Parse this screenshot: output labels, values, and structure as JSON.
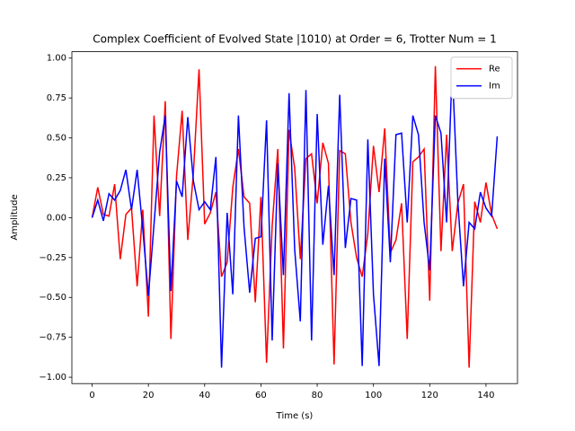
{
  "chart_data": {
    "type": "line",
    "title": "Complex Coefficient of Evolved State |1010⟩ at Order = 6, Trotter Num = 1",
    "x_label": "Time (s)",
    "y_label": "Amplitude",
    "x": [
      0,
      2,
      4,
      6,
      8,
      10,
      12,
      14,
      16,
      18,
      20,
      22,
      24,
      26,
      28,
      30,
      32,
      34,
      36,
      38,
      40,
      42,
      44,
      46,
      48,
      50,
      52,
      54,
      56,
      58,
      60,
      62,
      64,
      66,
      68,
      70,
      72,
      74,
      76,
      78,
      80,
      82,
      84,
      86,
      88,
      90,
      92,
      94,
      96,
      98,
      100,
      102,
      104,
      106,
      108,
      110,
      112,
      114,
      116,
      118,
      120,
      122,
      124,
      126,
      128,
      130,
      132,
      134,
      136,
      138,
      140,
      142,
      144
    ],
    "series": [
      {
        "name": "Re",
        "color": "#ff0000",
        "values": [
          0,
          0.19,
          0.02,
          0.01,
          0.21,
          -0.26,
          0.02,
          0.06,
          -0.43,
          0.05,
          -0.62,
          0.64,
          0.01,
          0.73,
          -0.76,
          0.26,
          0.67,
          -0.14,
          0.28,
          0.93,
          -0.04,
          0.03,
          0.16,
          -0.37,
          -0.28,
          0.19,
          0.43,
          0.13,
          0.09,
          -0.53,
          0.13,
          -0.91,
          -0.05,
          0.43,
          -0.82,
          0.55,
          0.31,
          -0.26,
          0.37,
          0.4,
          0.09,
          0.47,
          0.34,
          -0.92,
          0.42,
          0.4,
          -0.03,
          -0.25,
          -0.37,
          -0.1,
          0.45,
          0.16,
          0.56,
          -0.22,
          -0.14,
          0.09,
          -0.76,
          0.35,
          0.38,
          0.43,
          -0.52,
          0.95,
          -0.21,
          0.52,
          -0.21,
          0.09,
          0.21,
          -0.94,
          0.1,
          -0.03,
          0.22,
          0.02,
          -0.07
        ]
      },
      {
        "name": "Im",
        "color": "#0000ff",
        "values": [
          0,
          0.11,
          -0.02,
          0.15,
          0.11,
          0.17,
          0.3,
          0.05,
          0.3,
          -0.07,
          -0.49,
          -0.04,
          0.41,
          0.64,
          -0.46,
          0.23,
          0.13,
          0.63,
          0.23,
          0.05,
          0.1,
          0.05,
          0.38,
          -0.94,
          0.03,
          -0.48,
          0.64,
          -0.06,
          -0.47,
          -0.13,
          -0.12,
          0.61,
          -0.77,
          0.34,
          -0.36,
          0.78,
          -0.2,
          -0.65,
          0.8,
          -0.77,
          0.65,
          -0.17,
          0.2,
          -0.36,
          0.77,
          -0.19,
          0.12,
          0.11,
          -0.93,
          0.49,
          -0.48,
          -0.93,
          0.37,
          -0.28,
          0.52,
          0.53,
          -0.03,
          0.64,
          0.52,
          -0.03,
          -0.33,
          0.64,
          0.53,
          -0.03,
          0.94,
          0.1,
          -0.43,
          -0.03,
          -0.07,
          0.16,
          0.06,
          0.01,
          0.51
        ]
      }
    ],
    "xlim": [
      -7.2,
      151.2
    ],
    "xticks": [
      0,
      20,
      40,
      60,
      80,
      100,
      120,
      140
    ],
    "ylim": [
      -1.04,
      1.04
    ],
    "yticks": [
      {
        "value": -1,
        "label": "−1.00"
      },
      {
        "value": -0.75,
        "label": "−0.75"
      },
      {
        "value": -0.5,
        "label": "−0.50"
      },
      {
        "value": -0.25,
        "label": "−0.25"
      },
      {
        "value": 0,
        "label": "0.00"
      },
      {
        "value": 0.25,
        "label": "0.25"
      },
      {
        "value": 0.5,
        "label": "0.50"
      },
      {
        "value": 0.75,
        "label": "0.75"
      },
      {
        "value": 1,
        "label": "1.00"
      }
    ],
    "legend": "upper right"
  }
}
